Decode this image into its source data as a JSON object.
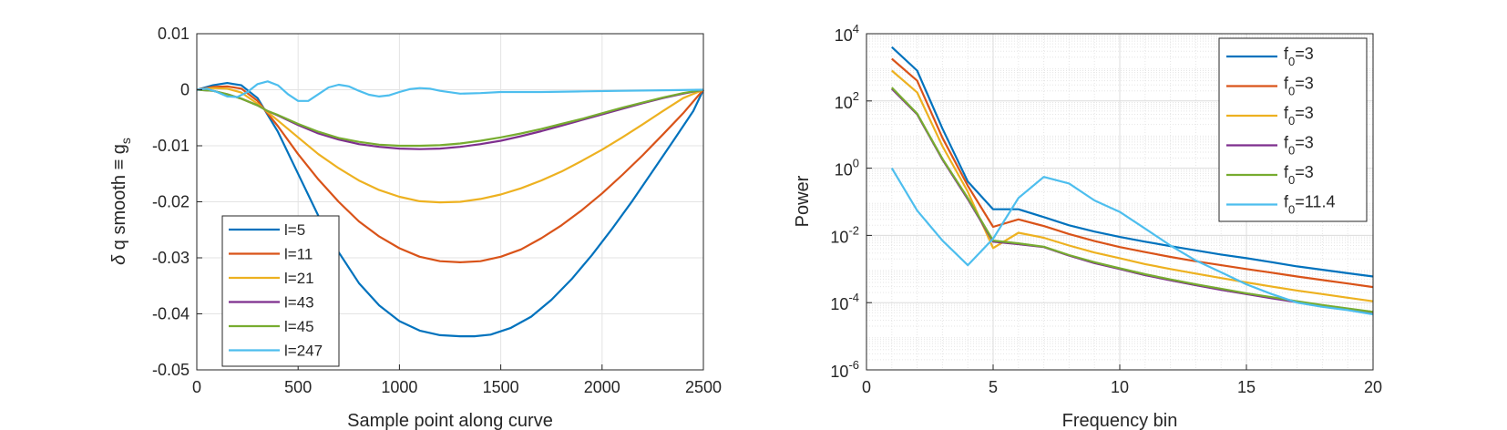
{
  "chart_data": [
    {
      "type": "line",
      "title": "",
      "xlabel": "Sample point along curve",
      "ylabel": "δ q smooth ≡ g_s",
      "xlim": [
        0,
        2500
      ],
      "ylim": [
        -0.05,
        0.01
      ],
      "xticks": [
        0,
        500,
        1000,
        1500,
        2000,
        2500
      ],
      "xtick_labels": [
        "0",
        "500",
        "1000",
        "1500",
        "2000",
        "2500"
      ],
      "yticks": [
        0.01,
        0,
        -0.01,
        -0.02,
        -0.03,
        -0.04,
        -0.05
      ],
      "ytick_labels": [
        "0.01",
        "0",
        "-0.01",
        "-0.02",
        "-0.03",
        "-0.04",
        "-0.05"
      ],
      "grid": true,
      "legend_position": "bottom-left",
      "series": [
        {
          "name": "l=5",
          "color": "#0072BD",
          "x": [
            0,
            80,
            150,
            220,
            300,
            400,
            500,
            600,
            700,
            800,
            900,
            1000,
            1100,
            1200,
            1300,
            1370,
            1450,
            1550,
            1650,
            1750,
            1850,
            1950,
            2050,
            2150,
            2250,
            2350,
            2450,
            2500
          ],
          "y": [
            0,
            0.0008,
            0.0012,
            0.0008,
            -0.0015,
            -0.0075,
            -0.015,
            -0.0225,
            -0.029,
            -0.0345,
            -0.0385,
            -0.0413,
            -0.043,
            -0.0438,
            -0.044,
            -0.044,
            -0.0437,
            -0.0425,
            -0.0405,
            -0.0375,
            -0.0338,
            -0.0295,
            -0.0248,
            -0.0198,
            -0.0145,
            -0.0092,
            -0.0038,
            0
          ]
        },
        {
          "name": "l=11",
          "color": "#D95319",
          "x": [
            0,
            80,
            150,
            220,
            300,
            400,
            500,
            600,
            700,
            800,
            900,
            1000,
            1100,
            1200,
            1300,
            1400,
            1500,
            1600,
            1700,
            1800,
            1900,
            2000,
            2100,
            2200,
            2300,
            2400,
            2500
          ],
          "y": [
            0,
            0.0005,
            0.0006,
            0.0002,
            -0.002,
            -0.0065,
            -0.0115,
            -0.016,
            -0.02,
            -0.0235,
            -0.0262,
            -0.0283,
            -0.0298,
            -0.0306,
            -0.0308,
            -0.0306,
            -0.0298,
            -0.0285,
            -0.0265,
            -0.0242,
            -0.0215,
            -0.0185,
            -0.0152,
            -0.0117,
            -0.008,
            -0.0042,
            0
          ]
        },
        {
          "name": "l=21",
          "color": "#EDB120",
          "x": [
            0,
            80,
            150,
            220,
            300,
            400,
            500,
            600,
            700,
            800,
            900,
            1000,
            1100,
            1200,
            1300,
            1400,
            1500,
            1600,
            1700,
            1800,
            1900,
            2000,
            2100,
            2200,
            2300,
            2400,
            2500
          ],
          "y": [
            0,
            0.0003,
            0.0002,
            -0.0005,
            -0.0025,
            -0.0055,
            -0.0085,
            -0.0115,
            -0.014,
            -0.0162,
            -0.0179,
            -0.0191,
            -0.0199,
            -0.0201,
            -0.02,
            -0.0195,
            -0.0187,
            -0.0176,
            -0.0162,
            -0.0146,
            -0.0127,
            -0.0107,
            -0.0085,
            -0.0062,
            -0.0038,
            -0.0015,
            0
          ]
        },
        {
          "name": "l=43",
          "color": "#7E2F8E",
          "x": [
            0,
            80,
            150,
            220,
            300,
            350,
            400,
            500,
            600,
            700,
            800,
            900,
            1000,
            1100,
            1200,
            1300,
            1400,
            1500,
            1600,
            1700,
            1800,
            1900,
            2000,
            2100,
            2200,
            2300,
            2400,
            2500
          ],
          "y": [
            0,
            -0.0002,
            -0.0008,
            -0.0016,
            -0.0028,
            -0.0038,
            -0.0046,
            -0.0063,
            -0.0078,
            -0.0089,
            -0.0097,
            -0.0102,
            -0.0105,
            -0.0106,
            -0.0105,
            -0.0102,
            -0.0097,
            -0.0091,
            -0.0083,
            -0.0074,
            -0.0064,
            -0.0054,
            -0.0044,
            -0.0034,
            -0.0024,
            -0.0015,
            -0.0007,
            0
          ]
        },
        {
          "name": "l=45",
          "color": "#77AC30",
          "x": [
            0,
            80,
            150,
            220,
            300,
            350,
            400,
            500,
            600,
            700,
            800,
            900,
            1000,
            1100,
            1200,
            1300,
            1400,
            1500,
            1600,
            1700,
            1800,
            1900,
            2000,
            2100,
            2200,
            2300,
            2400,
            2500
          ],
          "y": [
            0,
            -0.0002,
            -0.0008,
            -0.0016,
            -0.0028,
            -0.0038,
            -0.0045,
            -0.0061,
            -0.0075,
            -0.0086,
            -0.0093,
            -0.0098,
            -0.01,
            -0.01,
            -0.0099,
            -0.0096,
            -0.0091,
            -0.0085,
            -0.0078,
            -0.007,
            -0.0061,
            -0.0052,
            -0.0042,
            -0.0032,
            -0.0023,
            -0.0014,
            -0.0006,
            0
          ]
        },
        {
          "name": "l=247",
          "color": "#4DBEEE",
          "x": [
            0,
            50,
            100,
            150,
            200,
            250,
            300,
            350,
            400,
            450,
            500,
            550,
            600,
            650,
            700,
            750,
            800,
            850,
            900,
            950,
            1000,
            1050,
            1100,
            1150,
            1200,
            1300,
            1400,
            1500,
            1700,
            1900,
            2100,
            2300,
            2500
          ],
          "y": [
            0,
            0.0002,
            -0.0004,
            -0.0012,
            -0.0013,
            -0.0004,
            0.001,
            0.0015,
            0.0008,
            -0.0008,
            -0.002,
            -0.002,
            -0.0008,
            0.0004,
            0.0009,
            0.0006,
            -0.0002,
            -0.0009,
            -0.0012,
            -0.001,
            -0.0004,
            0.0001,
            0.0003,
            0.0002,
            -0.0002,
            -0.0007,
            -0.0006,
            -0.0004,
            -0.0004,
            -0.0003,
            -0.0002,
            -0.0001,
            0
          ]
        }
      ]
    },
    {
      "type": "line",
      "title": "",
      "xlabel": "Frequency bin",
      "ylabel": "Power",
      "xlim": [
        0,
        20
      ],
      "ylim": [
        1e-06,
        10000.0
      ],
      "yscale": "log",
      "xticks": [
        0,
        5,
        10,
        15,
        20
      ],
      "xtick_labels": [
        "0",
        "5",
        "10",
        "15",
        "20"
      ],
      "yticks": [
        10000.0,
        100.0,
        1.0,
        0.01,
        0.0001,
        1e-06
      ],
      "ytick_labels": [
        {
          "base": "10",
          "exp": "4"
        },
        {
          "base": "10",
          "exp": "2"
        },
        {
          "base": "10",
          "exp": "0"
        },
        {
          "base": "10",
          "exp": "-2"
        },
        {
          "base": "10",
          "exp": "-4"
        },
        {
          "base": "10",
          "exp": "-6"
        }
      ],
      "grid": true,
      "minor_grid": true,
      "legend_position": "top-right",
      "series": [
        {
          "name": "f_0=3",
          "legend": {
            "main": "f",
            "sub": "0",
            "rest": "=3"
          },
          "color": "#0072BD",
          "x": [
            1,
            2,
            3,
            4,
            5,
            6,
            7,
            8,
            9,
            10,
            11,
            12,
            13,
            14,
            15,
            16,
            17,
            18,
            19,
            20
          ],
          "y": [
            4000,
            800,
            15,
            0.4,
            0.06,
            0.06,
            0.035,
            0.02,
            0.013,
            0.009,
            0.0065,
            0.0048,
            0.0036,
            0.0027,
            0.0021,
            0.0016,
            0.0012,
            0.00095,
            0.00075,
            0.0006
          ]
        },
        {
          "name": "f_0=3",
          "legend": {
            "main": "f",
            "sub": "0",
            "rest": "=3"
          },
          "color": "#D95319",
          "x": [
            1,
            2,
            3,
            4,
            5,
            6,
            7,
            8,
            9,
            10,
            11,
            12,
            13,
            14,
            15,
            16,
            17,
            18,
            19,
            20
          ],
          "y": [
            1800,
            400,
            8,
            0.3,
            0.018,
            0.03,
            0.019,
            0.011,
            0.0068,
            0.0045,
            0.0032,
            0.0023,
            0.0017,
            0.0013,
            0.001,
            0.00078,
            0.0006,
            0.00047,
            0.00037,
            0.00029
          ]
        },
        {
          "name": "f_0=3",
          "legend": {
            "main": "f",
            "sub": "0",
            "rest": "=3"
          },
          "color": "#EDB120",
          "x": [
            1,
            2,
            3,
            4,
            5,
            6,
            7,
            8,
            9,
            10,
            11,
            12,
            13,
            14,
            15,
            16,
            17,
            18,
            19,
            20
          ],
          "y": [
            800,
            180,
            4.5,
            0.2,
            0.0042,
            0.012,
            0.0085,
            0.005,
            0.0031,
            0.0021,
            0.0014,
            0.001,
            0.00073,
            0.00054,
            0.0004,
            0.0003,
            0.00023,
            0.00018,
            0.00014,
            0.00011
          ]
        },
        {
          "name": "f_0=3",
          "legend": {
            "main": "f",
            "sub": "0",
            "rest": "=3"
          },
          "color": "#7E2F8E",
          "x": [
            1,
            2,
            3,
            4,
            5,
            6,
            7,
            8,
            9,
            10,
            11,
            12,
            13,
            14,
            15,
            16,
            17,
            18,
            19,
            20
          ],
          "y": [
            230,
            40,
            1.8,
            0.12,
            0.0065,
            0.0055,
            0.0045,
            0.0025,
            0.0015,
            0.001,
            0.00066,
            0.00046,
            0.00033,
            0.00024,
            0.00018,
            0.000135,
            0.000103,
            8e-05,
            6.3e-05,
            5e-05
          ]
        },
        {
          "name": "f_0=3",
          "legend": {
            "main": "f",
            "sub": "0",
            "rest": "=3"
          },
          "color": "#77AC30",
          "x": [
            1,
            2,
            3,
            4,
            5,
            6,
            7,
            8,
            9,
            10,
            11,
            12,
            13,
            14,
            15,
            16,
            17,
            18,
            19,
            20
          ],
          "y": [
            250,
            42,
            1.9,
            0.13,
            0.007,
            0.0058,
            0.0046,
            0.0026,
            0.0016,
            0.00105,
            0.0007,
            0.00049,
            0.00035,
            0.00026,
            0.00019,
            0.000145,
            0.00011,
            8.5e-05,
            6.7e-05,
            5.3e-05
          ]
        },
        {
          "name": "f_0=11.4",
          "legend": {
            "main": "f",
            "sub": "0",
            "rest": "=11.4"
          },
          "color": "#4DBEEE",
          "x": [
            1,
            2,
            3,
            4,
            5,
            6,
            7,
            8,
            9,
            10,
            11,
            12,
            13,
            14,
            15,
            16,
            17,
            18,
            19,
            20
          ],
          "y": [
            1,
            0.055,
            0.007,
            0.0013,
            0.008,
            0.13,
            0.55,
            0.35,
            0.11,
            0.05,
            0.016,
            0.005,
            0.0018,
            0.0008,
            0.00035,
            0.00018,
            0.0001,
            7.5e-05,
            6e-05,
            4.5e-05
          ]
        }
      ]
    }
  ]
}
